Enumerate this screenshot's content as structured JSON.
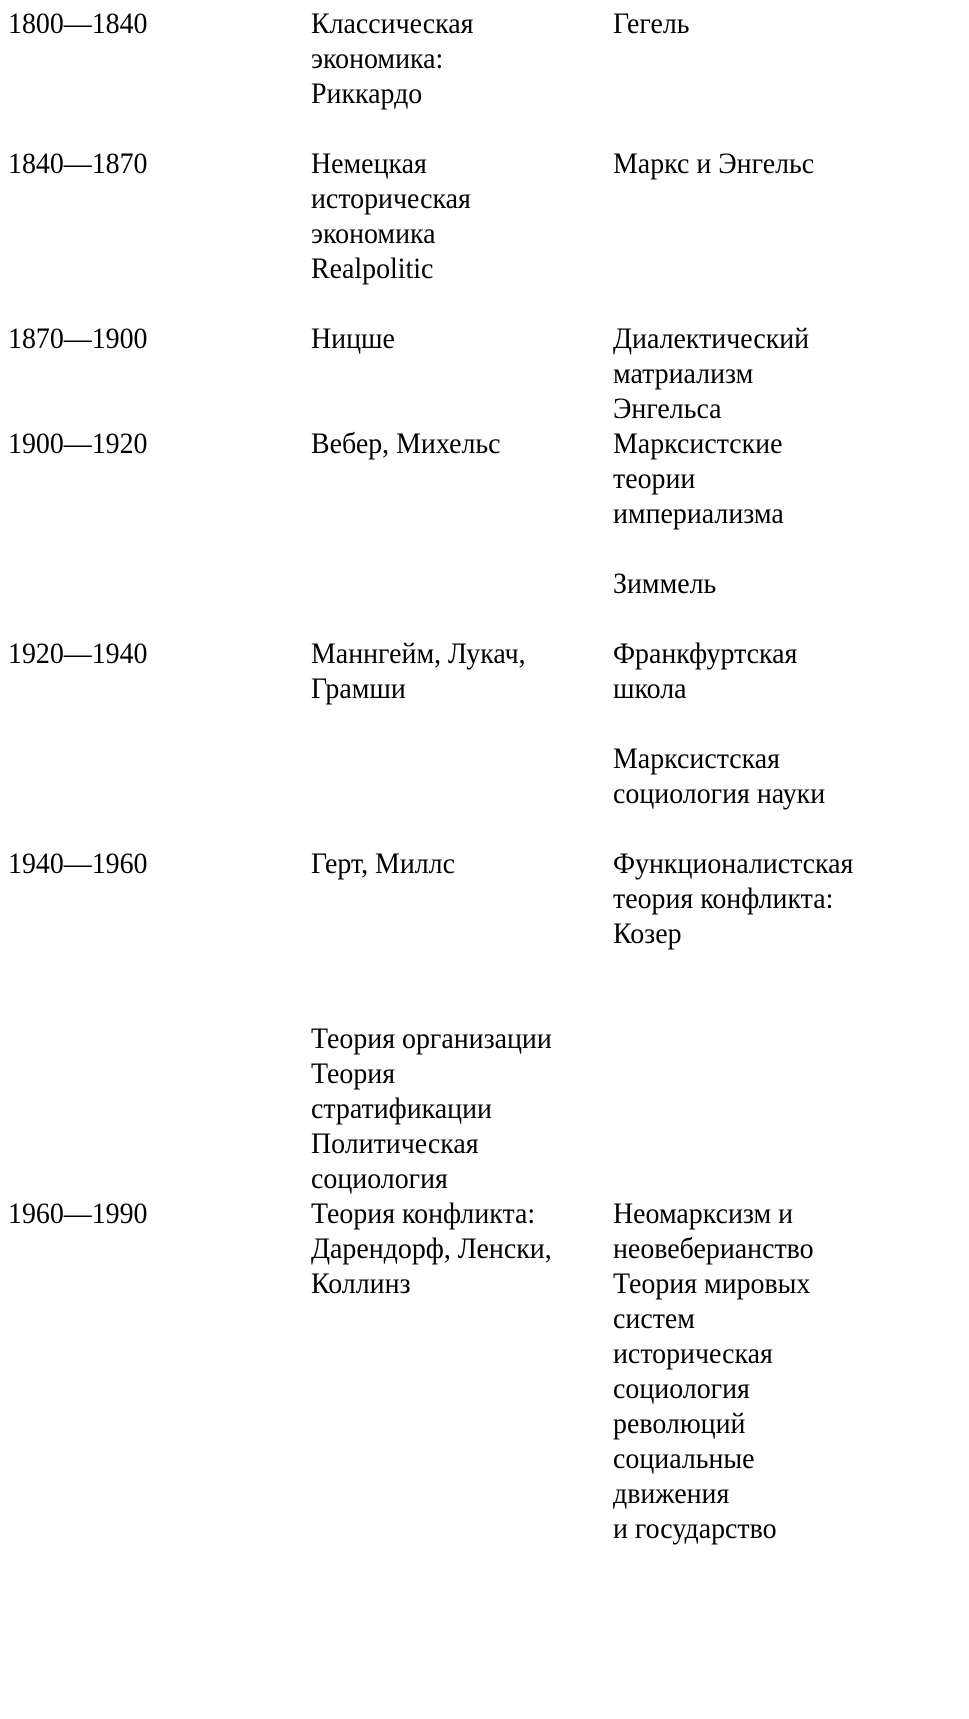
{
  "table": {
    "rows": [
      {
        "period": "1800—1840",
        "col2": [
          [
            "Классическая",
            "экономика:",
            "Риккардо"
          ]
        ],
        "col3": [
          [
            "Гегель"
          ]
        ]
      },
      {
        "period": "1840—1870",
        "col2": [
          [
            "Немецкая",
            "историческая",
            "экономика",
            "Realpolitic"
          ]
        ],
        "col3": [
          [
            "Маркс и Энгельс"
          ]
        ]
      },
      {
        "period": "1870—1900",
        "col2": [
          [
            "Ницше"
          ]
        ],
        "col3": [
          [
            "Диалектический",
            "матриализм",
            "Энгельса"
          ]
        ]
      },
      {
        "period": "1900—1920",
        "col2": [
          [
            "Вебер, Михельс"
          ]
        ],
        "col3": [
          [
            "Марксистские",
            "теории",
            "империализма"
          ],
          [
            "Зиммель"
          ]
        ]
      },
      {
        "period": "1920—1940",
        "col2": [
          [
            "Маннгейм, Лукач,",
            "Грамши"
          ]
        ],
        "col3": [
          [
            "Франкфуртская",
            "школа"
          ],
          [
            "Марксистская",
            "социология науки"
          ]
        ]
      },
      {
        "period": "1940—1960",
        "col2": [
          [
            "Герт, Миллс"
          ]
        ],
        "col3": [
          [
            "Функционалистская",
            "теория конфликта:",
            "Козер"
          ]
        ]
      },
      {
        "period": "",
        "col2": [
          [
            "Теория организации",
            "Теория",
            "стратификации",
            "Политическая",
            "социология"
          ]
        ],
        "col3": []
      },
      {
        "period": "1960—1990",
        "col2": [
          [
            "Теория конфликта:",
            "Дарендорф, Ленски,",
            "Коллинз"
          ]
        ],
        "col3": [
          [
            "Неомарксизм и",
            "неовеберианство",
            "Теория мировых",
            "систем",
            "историческая",
            "социология",
            "революций",
            "социальные",
            "движения",
            "и государство"
          ]
        ]
      }
    ]
  }
}
